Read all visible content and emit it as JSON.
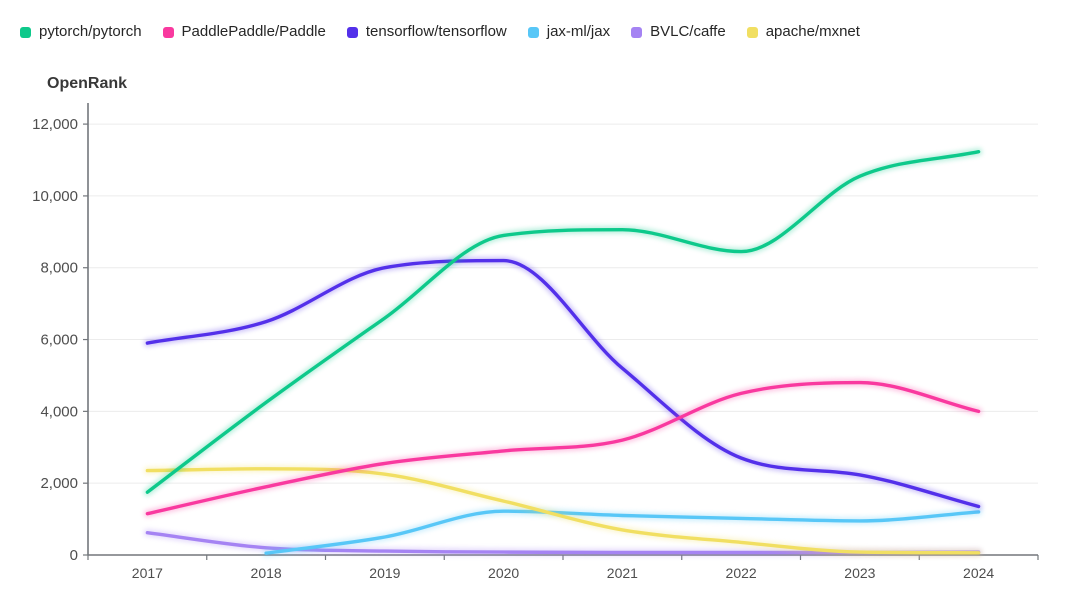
{
  "title": "OpenRank",
  "legend": {
    "items": [
      {
        "label": "pytorch/pytorch",
        "color": "#0ec98b"
      },
      {
        "label": "PaddlePaddle/Paddle",
        "color": "#f9399f"
      },
      {
        "label": "tensorflow/tensorflow",
        "color": "#5330ea"
      },
      {
        "label": "jax-ml/jax",
        "color": "#58c7f7"
      },
      {
        "label": "BVLC/caffe",
        "color": "#a583f3"
      },
      {
        "label": "apache/mxnet",
        "color": "#f1df62"
      }
    ]
  },
  "chart_data": {
    "type": "line",
    "title": "OpenRank",
    "smooth": true,
    "grid": true,
    "legend_position": "top",
    "xlabel": "",
    "ylabel": "OpenRank",
    "categories": [
      "2017",
      "2018",
      "2019",
      "2020",
      "2021",
      "2022",
      "2023",
      "2024"
    ],
    "ylim": [
      0,
      12000
    ],
    "yticks": [
      0,
      2000,
      4000,
      6000,
      8000,
      10000,
      12000
    ],
    "ytick_labels": [
      "0",
      "2,000",
      "4,000",
      "6,000",
      "8,000",
      "10,000",
      "12,000"
    ],
    "series": [
      {
        "name": "pytorch/pytorch",
        "color": "#0ec98b",
        "values": [
          1750,
          4250,
          6600,
          8900,
          9060,
          8450,
          10550,
          11230
        ]
      },
      {
        "name": "PaddlePaddle/Paddle",
        "color": "#f9399f",
        "values": [
          1150,
          1900,
          2550,
          2900,
          3200,
          4500,
          4800,
          4000
        ]
      },
      {
        "name": "tensorflow/tensorflow",
        "color": "#5330ea",
        "values": [
          5900,
          6500,
          8000,
          8200,
          5200,
          2700,
          2230,
          1350
        ]
      },
      {
        "name": "jax-ml/jax",
        "color": "#58c7f7",
        "values": [
          null,
          50,
          500,
          1220,
          1100,
          1020,
          950,
          1200
        ]
      },
      {
        "name": "BVLC/caffe",
        "color": "#a583f3",
        "values": [
          620,
          200,
          110,
          80,
          70,
          70,
          70,
          80
        ]
      },
      {
        "name": "apache/mxnet",
        "color": "#f1df62",
        "values": [
          2350,
          2400,
          2250,
          1500,
          700,
          350,
          80,
          60
        ]
      }
    ]
  }
}
